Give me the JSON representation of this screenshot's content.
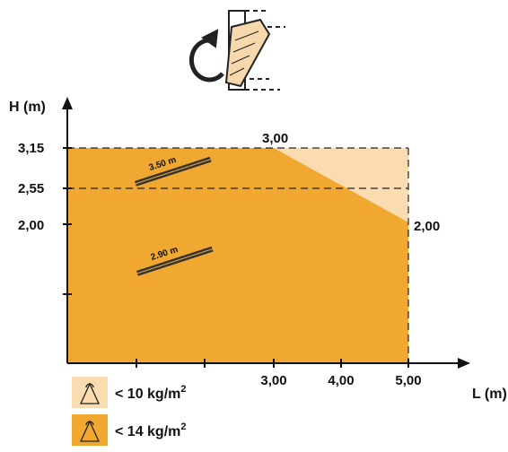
{
  "axes": {
    "y_label": "H (m)",
    "x_label": "L (m)",
    "y_ticks": [
      "3,15",
      "2,55",
      "2,00"
    ],
    "x_ticks": [
      "3,00",
      "4,00",
      "5,00"
    ],
    "corner_labels": [
      "3,00",
      "2,00"
    ]
  },
  "ladders": [
    "3.50 m",
    "2.90 m"
  ],
  "legend": [
    {
      "text": "< 10 kg/m",
      "sup": "2"
    },
    {
      "text": "< 14 kg/m",
      "sup": "2"
    }
  ]
}
